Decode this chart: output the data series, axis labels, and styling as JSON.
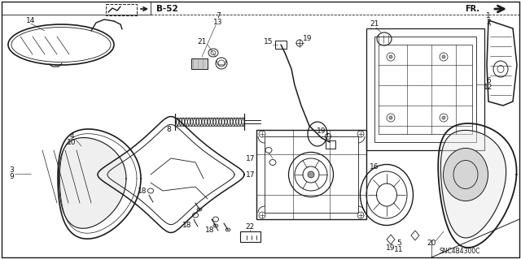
{
  "bg_color": "#f5f5f0",
  "line_color": "#1a1a1a",
  "text_color": "#111111",
  "diagram_code": "SNC4B4300C",
  "fig_width": 6.4,
  "fig_height": 3.19,
  "dpi": 100,
  "label_fontsize": 6.5
}
